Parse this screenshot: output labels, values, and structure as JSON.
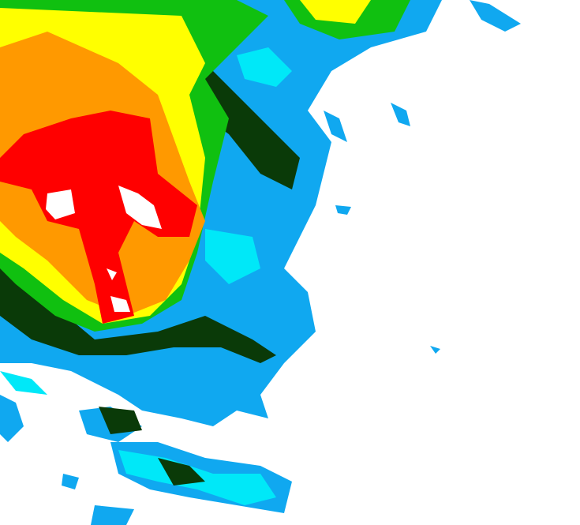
{
  "map": {
    "type": "radar-reflectivity",
    "colors": {
      "background": "#ffffff",
      "light_blue": "#10a8f0",
      "cyan": "#00e8f8",
      "dark_green": "#0a3a08",
      "green": "#10c010",
      "bright_green": "#20f020",
      "yellow": "#ffff00",
      "orange": "#ff9900",
      "red": "#ff0000"
    }
  }
}
